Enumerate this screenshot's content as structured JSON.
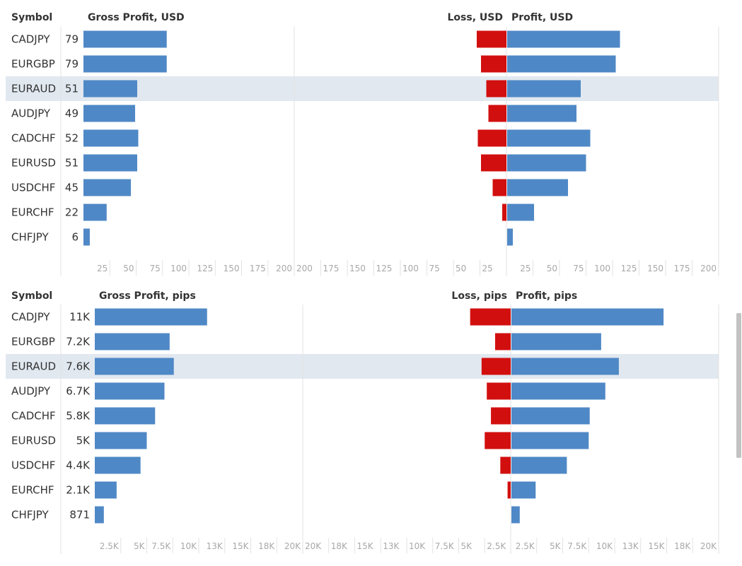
{
  "colors": {
    "bar": "#4f88c6",
    "loss": "#d20f0f",
    "highlight": "#e1e8f0",
    "grid": "#e2e2e2",
    "text": "#333333",
    "tick": "#a8a8a8"
  },
  "highlighted_symbol": "EURAUD",
  "chart_data": [
    {
      "type": "bar",
      "panel": "usd",
      "symbol_header": "Symbol",
      "symbols": [
        "CADJPY",
        "EURGBP",
        "EURAUD",
        "AUDJPY",
        "CADCHF",
        "EURUSD",
        "USDCHF",
        "EURCHF",
        "CHFJPY"
      ],
      "gross": {
        "title": "Gross Profit, USD",
        "values": [
          79,
          79,
          51,
          49,
          52,
          51,
          45,
          22,
          6
        ],
        "labels": [
          "79",
          "79",
          "51",
          "49",
          "52",
          "51",
          "45",
          "22",
          "6"
        ],
        "ticks": [
          25,
          50,
          75,
          100,
          125,
          150,
          175,
          200
        ],
        "tick_labels": [
          "25",
          "50",
          "75",
          "100",
          "125",
          "150",
          "175",
          "200"
        ],
        "xlim": [
          0,
          200
        ]
      },
      "loss": {
        "title": "Loss, USD",
        "values": [
          28,
          24,
          19,
          17,
          27,
          24,
          13,
          4,
          0
        ],
        "ticks": [
          200,
          175,
          150,
          125,
          100,
          75,
          50,
          25
        ],
        "tick_labels": [
          "200",
          "175",
          "150",
          "125",
          "100",
          "75",
          "50",
          "25"
        ],
        "xlim": [
          0,
          200
        ]
      },
      "profit": {
        "title": "Profit, USD",
        "values": [
          107,
          103,
          70,
          66,
          79,
          75,
          58,
          26,
          6
        ],
        "ticks": [
          25,
          50,
          75,
          100,
          125,
          150,
          175,
          200
        ],
        "tick_labels": [
          "25",
          "50",
          "75",
          "100",
          "125",
          "150",
          "175",
          "200"
        ],
        "xlim": [
          0,
          200
        ]
      }
    },
    {
      "type": "bar",
      "panel": "pips",
      "symbol_header": "Symbol",
      "symbols": [
        "CADJPY",
        "EURGBP",
        "EURAUD",
        "AUDJPY",
        "CADCHF",
        "EURUSD",
        "USDCHF",
        "EURCHF",
        "CHFJPY"
      ],
      "gross": {
        "title": "Gross Profit, pips",
        "values": [
          10800,
          7200,
          7600,
          6700,
          5800,
          5000,
          4400,
          2100,
          871
        ],
        "labels": [
          "11K",
          "7.2K",
          "7.6K",
          "6.7K",
          "5.8K",
          "5K",
          "4.4K",
          "2.1K",
          "871"
        ],
        "ticks": [
          2500,
          5000,
          7500,
          10000,
          12500,
          15000,
          17500,
          20000
        ],
        "tick_labels": [
          "2.5K",
          "5K",
          "7.5K",
          "10K",
          "13K",
          "15K",
          "18K",
          "20K"
        ],
        "xlim": [
          0,
          20000
        ]
      },
      "loss": {
        "title": "Loss, pips",
        "values": [
          3900,
          1500,
          2800,
          2300,
          1900,
          2500,
          1000,
          300,
          0
        ],
        "ticks": [
          20000,
          17500,
          15000,
          12500,
          10000,
          7500,
          5000,
          2500
        ],
        "tick_labels": [
          "20K",
          "18K",
          "15K",
          "13K",
          "10K",
          "7.5K",
          "5K",
          "2.5K"
        ],
        "xlim": [
          0,
          20000
        ]
      },
      "profit": {
        "title": "Profit, pips",
        "values": [
          14700,
          8700,
          10400,
          9100,
          7600,
          7500,
          5400,
          2400,
          871
        ],
        "ticks": [
          2500,
          5000,
          7500,
          10000,
          12500,
          15000,
          17500,
          20000
        ],
        "tick_labels": [
          "2.5K",
          "5K",
          "7.5K",
          "10K",
          "13K",
          "15K",
          "18K",
          "20K"
        ],
        "xlim": [
          0,
          20000
        ]
      }
    }
  ]
}
